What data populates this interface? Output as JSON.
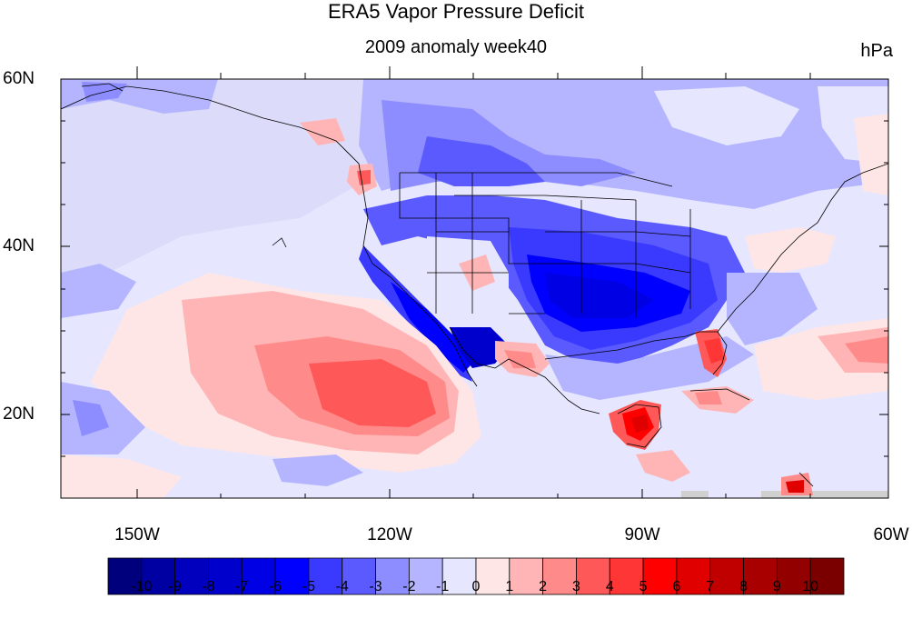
{
  "figure": {
    "title": "ERA5 Vapor Pressure Deficit",
    "subtitle": "2009 anomaly week40",
    "units": "hPa"
  },
  "axes": {
    "lat_labels": [
      "60N",
      "40N",
      "20N"
    ],
    "lon_labels": [
      "150W",
      "120W",
      "90W",
      "60W"
    ]
  },
  "colorbar": {
    "colors": [
      "#00007c",
      "#0000a2",
      "#0000be",
      "#0000cd",
      "#0000e4",
      "#0000ff",
      "#3a3aff",
      "#5a5aff",
      "#8d8dff",
      "#b5b5ff",
      "#e6e6ff",
      "#ffe6e6",
      "#ffb5b5",
      "#ff8a8a",
      "#ff5858",
      "#ff3636",
      "#ff0000",
      "#e00000",
      "#c00000",
      "#a80000",
      "#920000",
      "#7a0000"
    ],
    "labels": [
      "-10",
      "-9",
      "-8",
      "-7",
      "-6",
      "-5",
      "-4",
      "-3",
      "-2",
      "-1",
      "0",
      "1",
      "2",
      "3",
      "4",
      "5",
      "6",
      "7",
      "8",
      "9",
      "10"
    ]
  },
  "map_colors": {
    "background": "#e6e6ff",
    "land_outline": "#000000",
    "missing": "#d0d0d0"
  }
}
